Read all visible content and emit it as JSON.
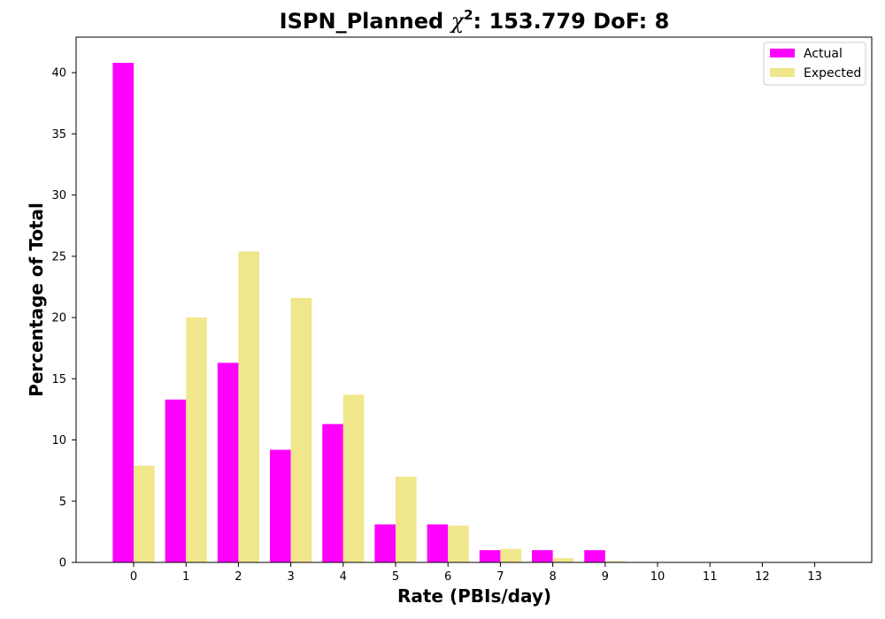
{
  "chart_data": {
    "type": "bar",
    "title_main": "ISPN_Planned ",
    "title_chi": "χ",
    "title_sup": "2",
    "title_rest": ": 153.779 DoF: 8",
    "xlabel": "Rate (PBIs/day)",
    "ylabel": "Percentage of Total",
    "categories": [
      "0",
      "1",
      "2",
      "3",
      "4",
      "5",
      "6",
      "7",
      "8",
      "9",
      "10",
      "11",
      "12",
      "13"
    ],
    "ylim": [
      0,
      42.9
    ],
    "yticks": [
      0,
      5,
      10,
      15,
      20,
      25,
      30,
      35,
      40
    ],
    "grid": false,
    "legend_position": "top-right",
    "series": [
      {
        "name": "Actual",
        "color": "#ff00ff",
        "values": [
          40.8,
          13.3,
          16.3,
          9.2,
          11.3,
          3.1,
          3.1,
          1.0,
          1.0,
          1.0,
          0,
          0,
          0,
          0
        ]
      },
      {
        "name": "Expected",
        "color": "#f0e68c",
        "values": [
          7.9,
          20.0,
          25.4,
          21.6,
          13.7,
          7.0,
          3.0,
          1.1,
          0.35,
          0.1,
          0.03,
          0.01,
          0,
          0
        ]
      }
    ]
  }
}
